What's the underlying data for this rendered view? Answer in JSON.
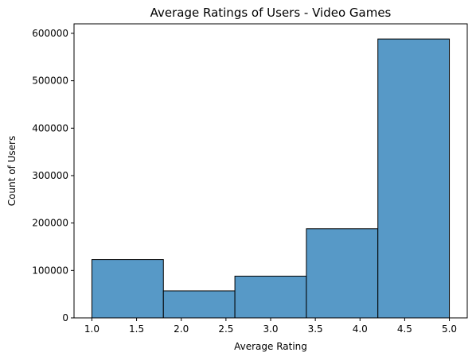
{
  "chart_data": {
    "type": "bar",
    "title": "Average Ratings of Users - Video Games",
    "xlabel": "Average Rating",
    "ylabel": "Count of Users",
    "bins": [
      {
        "x0": 1.0,
        "x1": 1.8,
        "value": 123000
      },
      {
        "x0": 1.8,
        "x1": 2.6,
        "value": 57000
      },
      {
        "x0": 2.6,
        "x1": 3.4,
        "value": 88000
      },
      {
        "x0": 3.4,
        "x1": 4.2,
        "value": 188000
      },
      {
        "x0": 4.2,
        "x1": 5.0,
        "value": 588000
      }
    ],
    "xlim": [
      0.8,
      5.2
    ],
    "ylim": [
      0,
      620000
    ],
    "xticks": [
      "1.0",
      "1.5",
      "2.0",
      "2.5",
      "3.0",
      "3.5",
      "4.0",
      "4.5",
      "5.0"
    ],
    "yticks": [
      "0",
      "100000",
      "200000",
      "300000",
      "400000",
      "500000",
      "600000"
    ],
    "grid": false,
    "legend": "none",
    "bar_color": "#5799c7",
    "edge_color": "#000000"
  }
}
